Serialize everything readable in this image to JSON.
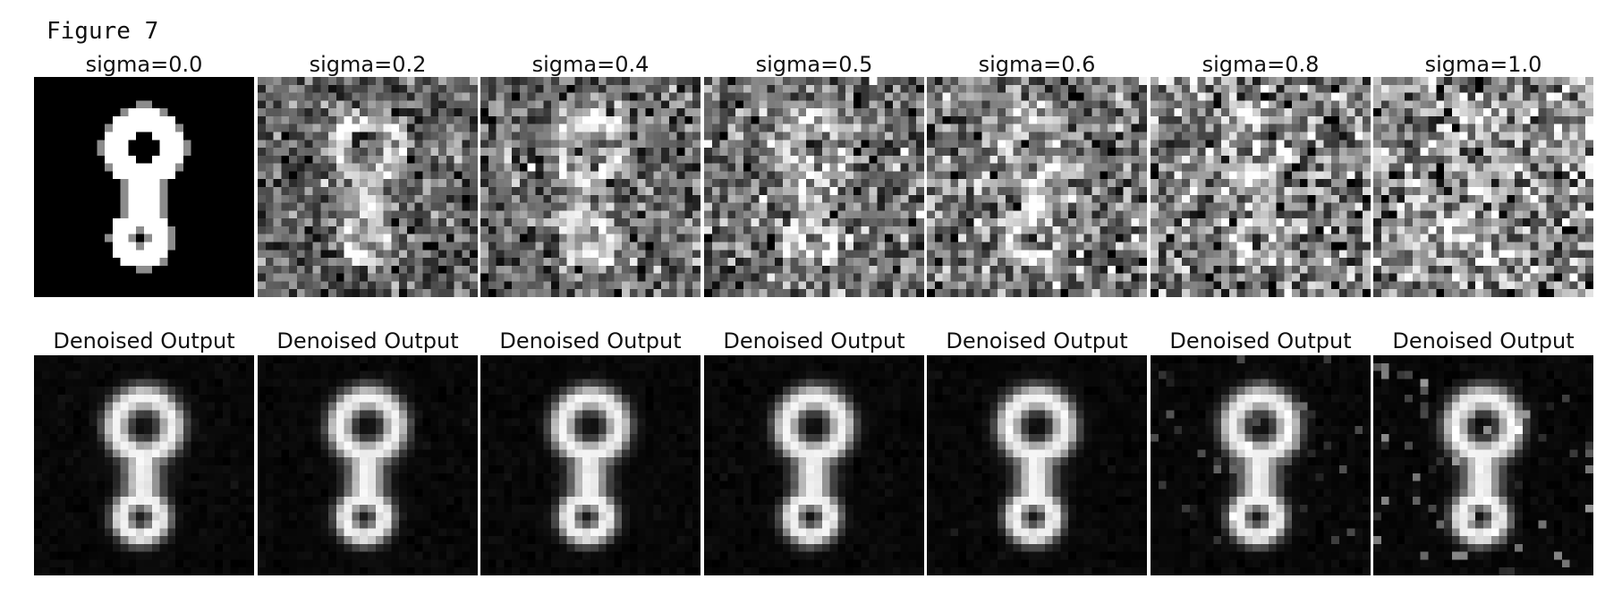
{
  "figure_label": "Figure 7",
  "rows": [
    {
      "kind": "noisy",
      "panels": [
        {
          "title": "sigma=0.0",
          "sigma": 0.0
        },
        {
          "title": "sigma=0.2",
          "sigma": 0.2
        },
        {
          "title": "sigma=0.4",
          "sigma": 0.4
        },
        {
          "title": "sigma=0.5",
          "sigma": 0.5
        },
        {
          "title": "sigma=0.6",
          "sigma": 0.6
        },
        {
          "title": "sigma=0.8",
          "sigma": 0.8
        },
        {
          "title": "sigma=1.0",
          "sigma": 1.0
        }
      ]
    },
    {
      "kind": "denoised",
      "panels": [
        {
          "title": "Denoised Output",
          "sigma": 0.0
        },
        {
          "title": "Denoised Output",
          "sigma": 0.2
        },
        {
          "title": "Denoised Output",
          "sigma": 0.4
        },
        {
          "title": "Denoised Output",
          "sigma": 0.5
        },
        {
          "title": "Denoised Output",
          "sigma": 0.6
        },
        {
          "title": "Denoised Output",
          "sigma": 0.8
        },
        {
          "title": "Denoised Output",
          "sigma": 1.0
        }
      ]
    }
  ]
}
